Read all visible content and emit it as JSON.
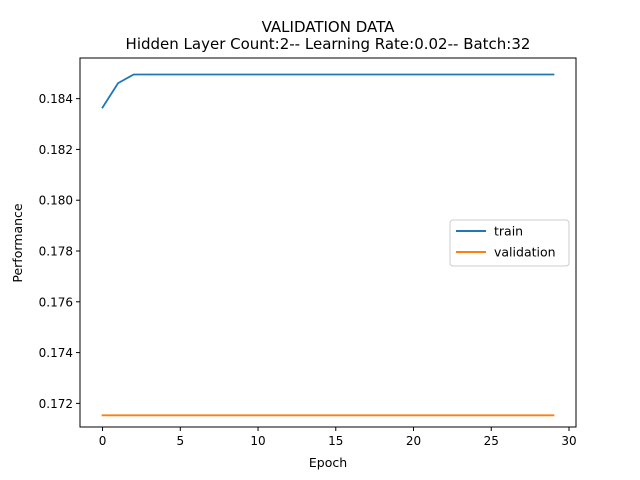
{
  "chart_data": {
    "type": "line",
    "title": "VALIDATION DATA",
    "subtitle": "Hidden Layer Count:2-- Learning Rate:0.02-- Batch:32",
    "xlabel": "Epoch",
    "ylabel": "Performance",
    "xlim": [
      -1.45,
      30.45
    ],
    "ylim": [
      0.17107,
      0.1856
    ],
    "x_ticks": [
      0,
      5,
      10,
      15,
      20,
      25,
      30
    ],
    "y_ticks": [
      0.172,
      0.174,
      0.176,
      0.178,
      0.18,
      0.182,
      0.184
    ],
    "y_tick_labels": [
      "0.172",
      "0.174",
      "0.176",
      "0.178",
      "0.180",
      "0.182",
      "0.184"
    ],
    "x": [
      0,
      1,
      2,
      3,
      4,
      5,
      6,
      7,
      8,
      9,
      10,
      11,
      12,
      13,
      14,
      15,
      16,
      17,
      18,
      19,
      20,
      21,
      22,
      23,
      24,
      25,
      26,
      27,
      28,
      29
    ],
    "series": [
      {
        "name": "train",
        "color": "#1f77b4",
        "values": [
          0.18365,
          0.18461,
          0.18495,
          0.18495,
          0.18495,
          0.18495,
          0.18495,
          0.18495,
          0.18495,
          0.18495,
          0.18495,
          0.18495,
          0.18495,
          0.18495,
          0.18495,
          0.18495,
          0.18495,
          0.18495,
          0.18495,
          0.18495,
          0.18495,
          0.18495,
          0.18495,
          0.18495,
          0.18495,
          0.18495,
          0.18495,
          0.18495,
          0.18495,
          0.18495
        ]
      },
      {
        "name": "validation",
        "color": "#ff7f0e",
        "values": [
          0.17153,
          0.17153,
          0.17153,
          0.17153,
          0.17153,
          0.17153,
          0.17153,
          0.17153,
          0.17153,
          0.17153,
          0.17153,
          0.17153,
          0.17153,
          0.17153,
          0.17153,
          0.17153,
          0.17153,
          0.17153,
          0.17153,
          0.17153,
          0.17153,
          0.17153,
          0.17153,
          0.17153,
          0.17153,
          0.17153,
          0.17153,
          0.17153,
          0.17153,
          0.17153
        ]
      }
    ],
    "grid": false,
    "legend_position": "center-right"
  }
}
